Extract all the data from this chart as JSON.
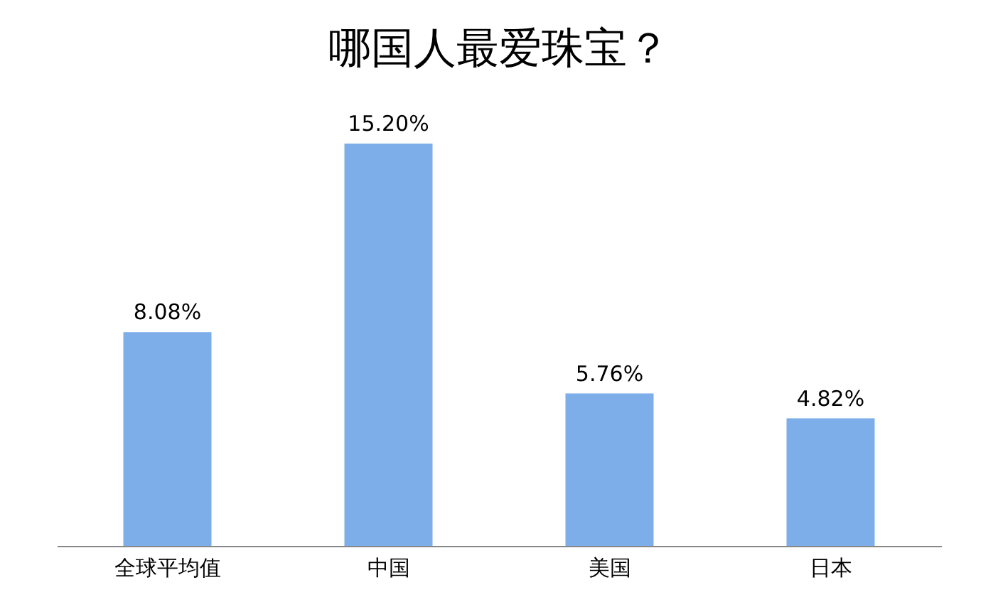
{
  "chart_data": {
    "type": "bar",
    "title": "哪国人最爱珠宝？",
    "categories": [
      "全球平均值",
      "中国",
      "美国",
      "日本"
    ],
    "values": [
      8.08,
      15.2,
      5.76,
      4.82
    ],
    "value_labels": [
      "8.08%",
      "15.20%",
      "5.76%",
      "4.82%"
    ],
    "color": "#7eaeea",
    "grid": false
  }
}
